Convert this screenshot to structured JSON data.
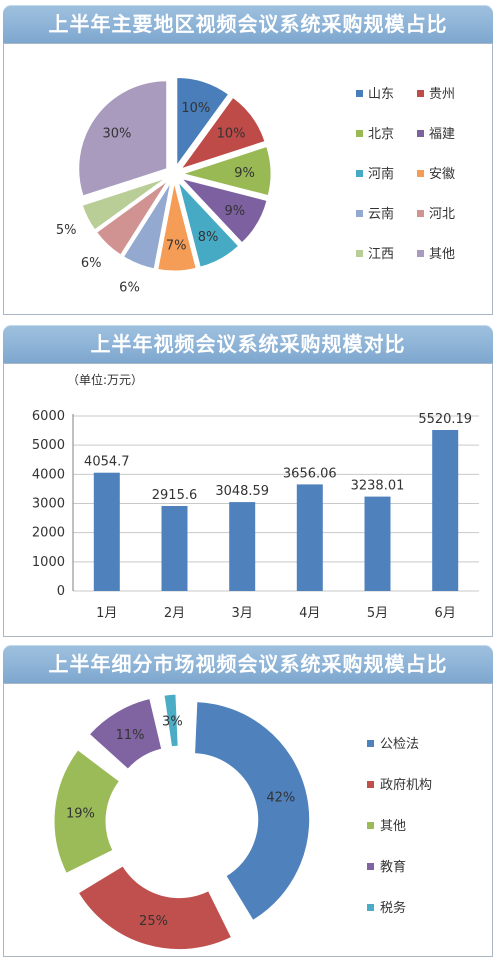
{
  "chart_data": [
    {
      "type": "pie",
      "title": "上半年主要地区视频会议系统采购规模占比",
      "series": [
        {
          "name": "山东",
          "value": 10,
          "label": "10%",
          "color": "#4a7ebb"
        },
        {
          "name": "贵州",
          "value": 10,
          "label": "10%",
          "color": "#be4b48"
        },
        {
          "name": "北京",
          "value": 9,
          "label": "9%",
          "color": "#98b954"
        },
        {
          "name": "福建",
          "value": 9,
          "label": "9%",
          "color": "#7d60a0"
        },
        {
          "name": "河南",
          "value": 8,
          "label": "8%",
          "color": "#46aac5"
        },
        {
          "name": "安徽",
          "value": 7,
          "label": "7%",
          "color": "#f59d56"
        },
        {
          "name": "云南",
          "value": 6,
          "label": "6%",
          "color": "#93a9cf"
        },
        {
          "name": "河北",
          "value": 6,
          "label": "6%",
          "color": "#d19392"
        },
        {
          "name": "江西",
          "value": 5,
          "label": "5%",
          "color": "#b9cd96"
        },
        {
          "name": "其他",
          "value": 30,
          "label": "30%",
          "color": "#a99bbd"
        }
      ]
    },
    {
      "type": "bar",
      "title": "上半年视频会议系统采购规模对比",
      "unit_label": "（单位:万元）",
      "categories": [
        "1月",
        "2月",
        "3月",
        "4月",
        "5月",
        "6月"
      ],
      "values": [
        4054.7,
        2915.6,
        3048.59,
        3656.06,
        3238.01,
        5520.19
      ],
      "value_labels": [
        "4054.7",
        "2915.6",
        "3048.59",
        "3656.06",
        "3238.01",
        "5520.19"
      ],
      "yticks": [
        "0",
        "1000",
        "2000",
        "3000",
        "4000",
        "5000",
        "6000"
      ],
      "ylim": [
        0,
        6000
      ],
      "bar_color": "#4f81bd"
    },
    {
      "type": "pie",
      "subtype": "doughnut",
      "title": "上半年细分市场视频会议系统采购规模占比",
      "series": [
        {
          "name": "公检法",
          "value": 42,
          "label": "42%",
          "color": "#4f81bd"
        },
        {
          "name": "政府机构",
          "value": 25,
          "label": "25%",
          "color": "#c0504d"
        },
        {
          "name": "其他",
          "value": 19,
          "label": "19%",
          "color": "#9bbb59"
        },
        {
          "name": "教育",
          "value": 11,
          "label": "11%",
          "color": "#8064a2"
        },
        {
          "name": "税务",
          "value": 3,
          "label": "3%",
          "color": "#4bacc6"
        }
      ]
    }
  ]
}
